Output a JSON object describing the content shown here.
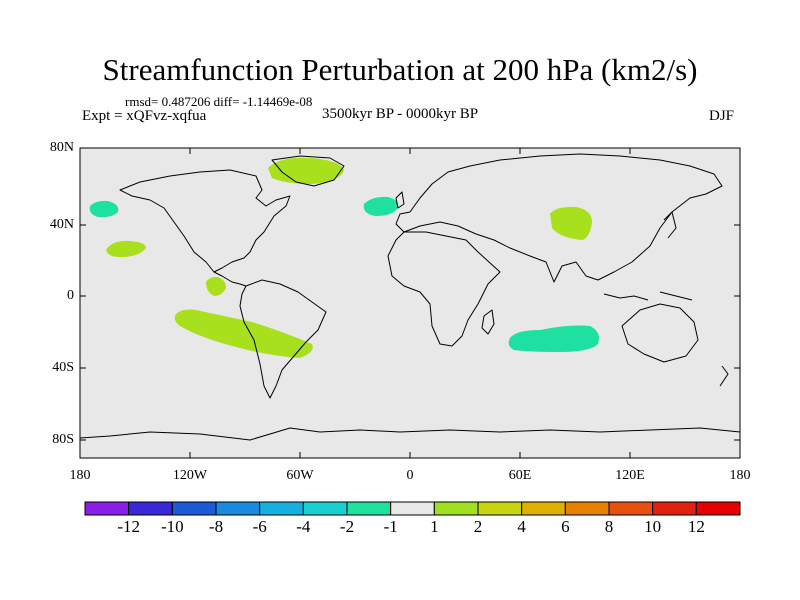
{
  "title": "Streamfunction Perturbation at 200 hPa (km2/s)",
  "stats": "rmsd= 0.487206 diff= -1.14469e-08",
  "expt": "Expt = xQFvz-xqfua",
  "period": "3500kyr BP - 0000kyr BP",
  "season": "DJF",
  "y_axis_labels": [
    "80N",
    "40N",
    "0",
    "40S",
    "80S"
  ],
  "x_axis_labels": [
    "180",
    "120W",
    "60W",
    "0",
    "60E",
    "120E",
    "180"
  ],
  "colorbar": {
    "labels": [
      "-12",
      "-10",
      "-8",
      "-6",
      "-4",
      "-2",
      "-1",
      "1",
      "2",
      "4",
      "6",
      "8",
      "10",
      "12"
    ],
    "colors": [
      "#8a1de8",
      "#3a28d8",
      "#1c5ad8",
      "#1a8ae0",
      "#16b0e0",
      "#18d0d0",
      "#1ee0a0",
      "#e8e8e8",
      "#a0e020",
      "#c8d410",
      "#e0b000",
      "#e88000",
      "#e85010",
      "#e02010",
      "#e80000"
    ]
  },
  "map_background_color": "#e8e8e8",
  "regions": [
    {
      "name": "greenland-positive",
      "level": "1 to 2"
    },
    {
      "name": "central-asia-positive",
      "level": "1 to 2"
    },
    {
      "name": "north-pacific-positive",
      "level": "1 to 2"
    },
    {
      "name": "east-pacific-positive",
      "level": "1 to 2"
    },
    {
      "name": "south-pacific-positive",
      "level": "1 to 2"
    },
    {
      "name": "north-pacific-negative",
      "level": "-2 to -1"
    },
    {
      "name": "north-atlantic-negative",
      "level": "-2 to -1"
    },
    {
      "name": "indian-ocean-negative",
      "level": "-2 to -1"
    }
  ]
}
